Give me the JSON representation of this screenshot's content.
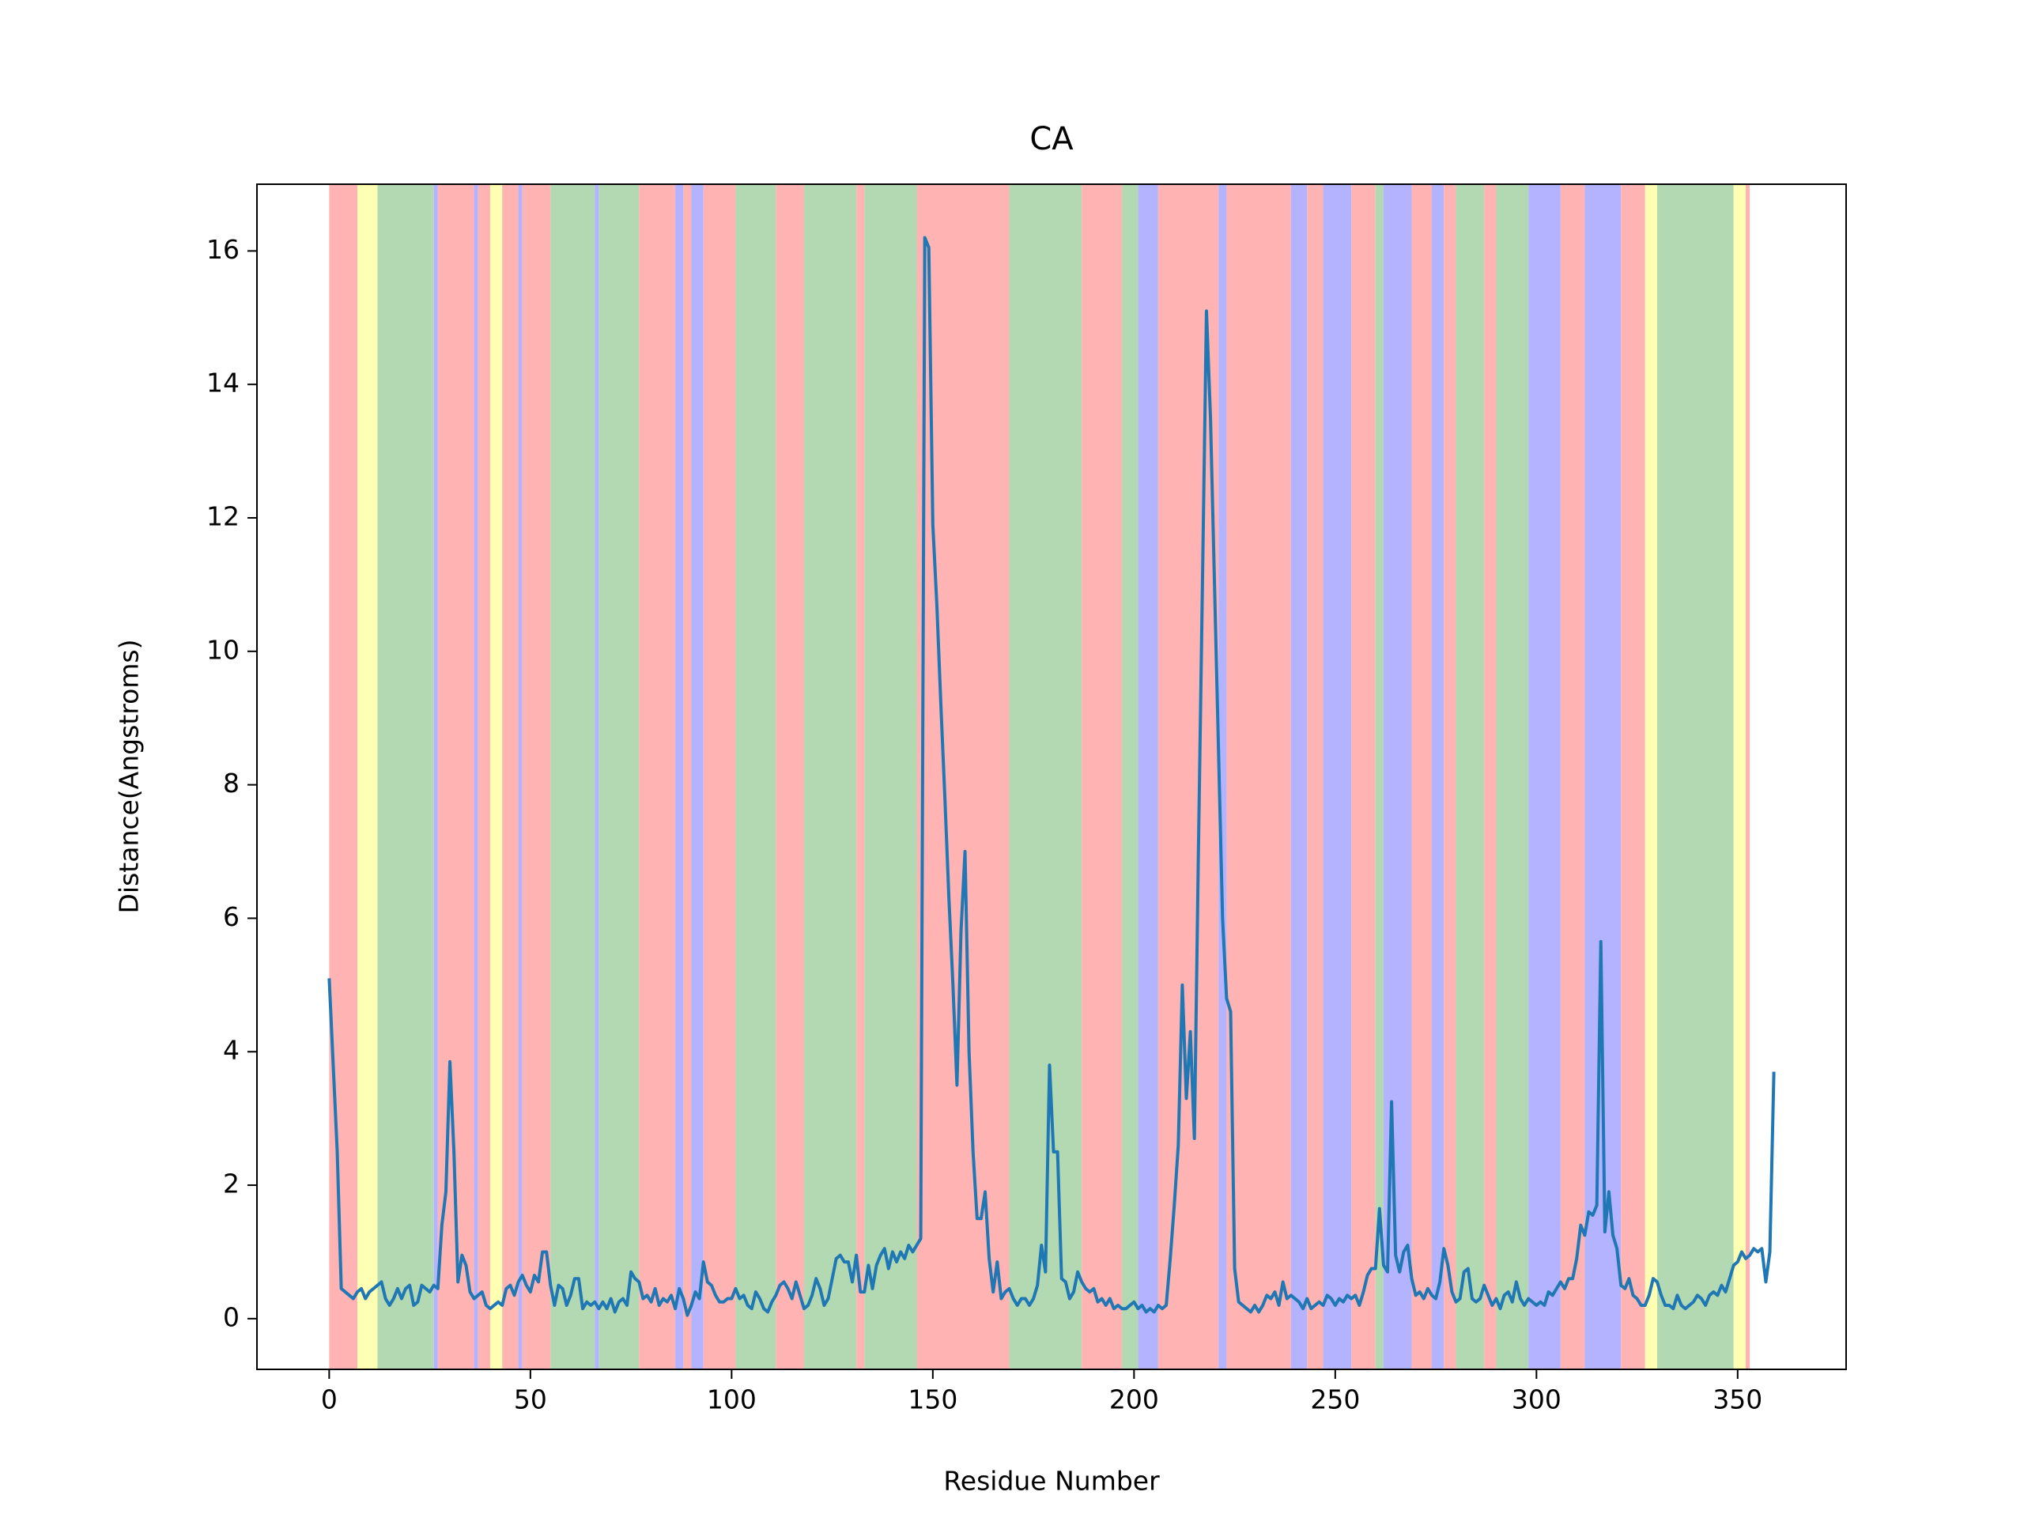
{
  "chart_data": {
    "type": "line",
    "title": "CA",
    "x_label": "Residue Number",
    "y_label": "Distance(Angstroms)",
    "color": "#1f77b4",
    "xlim": [
      -17.95,
      376.95
    ],
    "xticks": [
      0,
      50,
      100,
      150,
      200,
      250,
      300,
      350
    ],
    "ylim": [
      -0.76,
      17.0
    ],
    "yticks": [
      0,
      2,
      4,
      6,
      8,
      10,
      12,
      14,
      16
    ],
    "grid": false,
    "bands": [
      {
        "start": 0,
        "end": 7,
        "color": "#ffb3b3"
      },
      {
        "start": 7,
        "end": 12,
        "color": "#ffffb3"
      },
      {
        "start": 12,
        "end": 26,
        "color": "#b3d9b3"
      },
      {
        "start": 26,
        "end": 27,
        "color": "#b3b3ff"
      },
      {
        "start": 27,
        "end": 36,
        "color": "#ffb3b3"
      },
      {
        "start": 36,
        "end": 37,
        "color": "#b3b3ff"
      },
      {
        "start": 37,
        "end": 40,
        "color": "#ffb3b3"
      },
      {
        "start": 40,
        "end": 43,
        "color": "#ffffb3"
      },
      {
        "start": 43,
        "end": 47,
        "color": "#ffb3b3"
      },
      {
        "start": 47,
        "end": 48,
        "color": "#b3b3ff"
      },
      {
        "start": 48,
        "end": 55,
        "color": "#ffb3b3"
      },
      {
        "start": 55,
        "end": 66,
        "color": "#b3d9b3"
      },
      {
        "start": 66,
        "end": 67,
        "color": "#b3b3ff"
      },
      {
        "start": 67,
        "end": 77,
        "color": "#b3d9b3"
      },
      {
        "start": 77,
        "end": 86,
        "color": "#ffb3b3"
      },
      {
        "start": 86,
        "end": 88,
        "color": "#b3b3ff"
      },
      {
        "start": 88,
        "end": 90,
        "color": "#ffb3b3"
      },
      {
        "start": 90,
        "end": 93,
        "color": "#b3b3ff"
      },
      {
        "start": 93,
        "end": 101,
        "color": "#ffb3b3"
      },
      {
        "start": 101,
        "end": 111,
        "color": "#b3d9b3"
      },
      {
        "start": 111,
        "end": 118,
        "color": "#ffb3b3"
      },
      {
        "start": 118,
        "end": 131,
        "color": "#b3d9b3"
      },
      {
        "start": 131,
        "end": 133,
        "color": "#ffb3b3"
      },
      {
        "start": 133,
        "end": 146,
        "color": "#b3d9b3"
      },
      {
        "start": 146,
        "end": 169,
        "color": "#ffb3b3"
      },
      {
        "start": 169,
        "end": 187,
        "color": "#b3d9b3"
      },
      {
        "start": 187,
        "end": 197,
        "color": "#ffb3b3"
      },
      {
        "start": 197,
        "end": 201,
        "color": "#b3d9b3"
      },
      {
        "start": 201,
        "end": 206,
        "color": "#b3b3ff"
      },
      {
        "start": 206,
        "end": 221,
        "color": "#ffb3b3"
      },
      {
        "start": 221,
        "end": 223,
        "color": "#b3b3ff"
      },
      {
        "start": 223,
        "end": 239,
        "color": "#ffb3b3"
      },
      {
        "start": 239,
        "end": 243,
        "color": "#b3b3ff"
      },
      {
        "start": 243,
        "end": 247,
        "color": "#ffb3b3"
      },
      {
        "start": 247,
        "end": 254,
        "color": "#b3b3ff"
      },
      {
        "start": 254,
        "end": 260,
        "color": "#ffb3b3"
      },
      {
        "start": 260,
        "end": 262,
        "color": "#b3d9b3"
      },
      {
        "start": 262,
        "end": 269,
        "color": "#b3b3ff"
      },
      {
        "start": 269,
        "end": 274,
        "color": "#ffb3b3"
      },
      {
        "start": 274,
        "end": 277,
        "color": "#b3b3ff"
      },
      {
        "start": 277,
        "end": 280,
        "color": "#ffb3b3"
      },
      {
        "start": 280,
        "end": 287,
        "color": "#b3d9b3"
      },
      {
        "start": 287,
        "end": 290,
        "color": "#ffb3b3"
      },
      {
        "start": 290,
        "end": 298,
        "color": "#b3d9b3"
      },
      {
        "start": 298,
        "end": 306,
        "color": "#b3b3ff"
      },
      {
        "start": 306,
        "end": 312,
        "color": "#ffb3b3"
      },
      {
        "start": 312,
        "end": 321,
        "color": "#b3b3ff"
      },
      {
        "start": 321,
        "end": 327,
        "color": "#ffb3b3"
      },
      {
        "start": 327,
        "end": 330,
        "color": "#ffffb3"
      },
      {
        "start": 330,
        "end": 349,
        "color": "#b3d9b3"
      },
      {
        "start": 349,
        "end": 352,
        "color": "#ffffb3"
      },
      {
        "start": 352,
        "end": 353,
        "color": "#ffb3b3"
      }
    ],
    "x": [
      0,
      1,
      2,
      3,
      4,
      5,
      6,
      7,
      8,
      9,
      10,
      11,
      12,
      13,
      14,
      15,
      16,
      17,
      18,
      19,
      20,
      21,
      22,
      23,
      24,
      25,
      26,
      27,
      28,
      29,
      30,
      31,
      32,
      33,
      34,
      35,
      36,
      37,
      38,
      39,
      40,
      41,
      42,
      43,
      44,
      45,
      46,
      47,
      48,
      49,
      50,
      51,
      52,
      53,
      54,
      55,
      56,
      57,
      58,
      59,
      60,
      61,
      62,
      63,
      64,
      65,
      66,
      67,
      68,
      69,
      70,
      71,
      72,
      73,
      74,
      75,
      76,
      77,
      78,
      79,
      80,
      81,
      82,
      83,
      84,
      85,
      86,
      87,
      88,
      89,
      90,
      91,
      92,
      93,
      94,
      95,
      96,
      97,
      98,
      99,
      100,
      101,
      102,
      103,
      104,
      105,
      106,
      107,
      108,
      109,
      110,
      111,
      112,
      113,
      114,
      115,
      116,
      117,
      118,
      119,
      120,
      121,
      122,
      123,
      124,
      125,
      126,
      127,
      128,
      129,
      130,
      131,
      132,
      133,
      134,
      135,
      136,
      137,
      138,
      139,
      140,
      141,
      142,
      143,
      144,
      145,
      146,
      147,
      148,
      149,
      150,
      151,
      152,
      153,
      154,
      155,
      156,
      157,
      158,
      159,
      160,
      161,
      162,
      163,
      164,
      165,
      166,
      167,
      168,
      169,
      170,
      171,
      172,
      173,
      174,
      175,
      176,
      177,
      178,
      179,
      180,
      181,
      182,
      183,
      184,
      185,
      186,
      187,
      188,
      189,
      190,
      191,
      192,
      193,
      194,
      195,
      196,
      197,
      198,
      199,
      200,
      201,
      202,
      203,
      204,
      205,
      206,
      207,
      208,
      209,
      210,
      211,
      212,
      213,
      214,
      215,
      216,
      217,
      218,
      219,
      220,
      221,
      222,
      223,
      224,
      225,
      226,
      227,
      228,
      229,
      230,
      231,
      232,
      233,
      234,
      235,
      236,
      237,
      238,
      239,
      240,
      241,
      242,
      243,
      244,
      245,
      246,
      247,
      248,
      249,
      250,
      251,
      252,
      253,
      254,
      255,
      256,
      257,
      258,
      259,
      260,
      261,
      262,
      263,
      264,
      265,
      266,
      267,
      268,
      269,
      270,
      271,
      272,
      273,
      274,
      275,
      276,
      277,
      278,
      279,
      280,
      281,
      282,
      283,
      284,
      285,
      286,
      287,
      288,
      289,
      290,
      291,
      292,
      293,
      294,
      295,
      296,
      297,
      298,
      299,
      300,
      301,
      302,
      303,
      304,
      305,
      306,
      307,
      308,
      309,
      310,
      311,
      312,
      313,
      314,
      315,
      316,
      317,
      318,
      319,
      320,
      321,
      322,
      323,
      324,
      325,
      326,
      327,
      328,
      329,
      330,
      331,
      332,
      333,
      334,
      335,
      336,
      337,
      338,
      339,
      340,
      341,
      342,
      343,
      344,
      345,
      346,
      347,
      348,
      349,
      350,
      351,
      352,
      353,
      354,
      355,
      356,
      357,
      358,
      359
    ],
    "values": [
      5.1,
      3.8,
      2.5,
      0.45,
      0.4,
      0.35,
      0.3,
      0.4,
      0.45,
      0.3,
      0.4,
      0.45,
      0.5,
      0.55,
      0.3,
      0.2,
      0.3,
      0.45,
      0.3,
      0.45,
      0.5,
      0.2,
      0.25,
      0.5,
      0.45,
      0.4,
      0.5,
      0.45,
      1.4,
      1.9,
      3.85,
      2.5,
      0.55,
      0.95,
      0.8,
      0.4,
      0.3,
      0.35,
      0.4,
      0.2,
      0.15,
      0.2,
      0.25,
      0.2,
      0.45,
      0.5,
      0.35,
      0.55,
      0.65,
      0.5,
      0.4,
      0.65,
      0.55,
      1.0,
      1.0,
      0.5,
      0.2,
      0.5,
      0.45,
      0.2,
      0.35,
      0.6,
      0.6,
      0.15,
      0.25,
      0.2,
      0.25,
      0.15,
      0.25,
      0.15,
      0.3,
      0.1,
      0.25,
      0.3,
      0.2,
      0.7,
      0.6,
      0.55,
      0.3,
      0.35,
      0.25,
      0.45,
      0.2,
      0.3,
      0.25,
      0.35,
      0.15,
      0.45,
      0.3,
      0.05,
      0.2,
      0.4,
      0.3,
      0.85,
      0.55,
      0.5,
      0.35,
      0.25,
      0.25,
      0.3,
      0.3,
      0.45,
      0.3,
      0.35,
      0.2,
      0.15,
      0.4,
      0.3,
      0.15,
      0.1,
      0.25,
      0.35,
      0.5,
      0.55,
      0.45,
      0.3,
      0.55,
      0.35,
      0.15,
      0.2,
      0.35,
      0.6,
      0.45,
      0.2,
      0.3,
      0.6,
      0.9,
      0.95,
      0.85,
      0.85,
      0.55,
      0.95,
      0.4,
      0.4,
      0.8,
      0.45,
      0.8,
      0.95,
      1.05,
      0.75,
      1.0,
      0.85,
      1.0,
      0.9,
      1.1,
      1.0,
      1.1,
      1.2,
      16.2,
      16.05,
      11.9,
      10.7,
      9.2,
      7.8,
      6.3,
      5.0,
      3.5,
      5.8,
      7.0,
      4.0,
      2.5,
      1.5,
      1.5,
      1.9,
      0.9,
      0.4,
      0.85,
      0.3,
      0.4,
      0.45,
      0.3,
      0.2,
      0.3,
      0.3,
      0.2,
      0.3,
      0.5,
      1.1,
      0.7,
      3.8,
      2.5,
      2.5,
      0.6,
      0.55,
      0.3,
      0.4,
      0.7,
      0.55,
      0.45,
      0.4,
      0.45,
      0.25,
      0.3,
      0.2,
      0.3,
      0.15,
      0.2,
      0.15,
      0.15,
      0.2,
      0.25,
      0.15,
      0.2,
      0.1,
      0.15,
      0.1,
      0.2,
      0.15,
      0.2,
      0.9,
      1.7,
      2.6,
      5.0,
      3.3,
      4.3,
      2.7,
      7.0,
      11.0,
      15.1,
      13.5,
      11.0,
      8.5,
      6.0,
      4.8,
      4.6,
      0.75,
      0.25,
      0.2,
      0.15,
      0.1,
      0.2,
      0.1,
      0.2,
      0.35,
      0.3,
      0.4,
      0.2,
      0.55,
      0.3,
      0.35,
      0.3,
      0.25,
      0.15,
      0.3,
      0.15,
      0.2,
      0.25,
      0.2,
      0.35,
      0.3,
      0.2,
      0.3,
      0.25,
      0.35,
      0.3,
      0.35,
      0.2,
      0.4,
      0.65,
      0.75,
      0.75,
      1.65,
      0.8,
      0.7,
      3.25,
      0.95,
      0.7,
      1.0,
      1.1,
      0.6,
      0.35,
      0.4,
      0.3,
      0.45,
      0.35,
      0.3,
      0.55,
      1.05,
      0.8,
      0.4,
      0.25,
      0.3,
      0.7,
      0.75,
      0.3,
      0.25,
      0.3,
      0.5,
      0.35,
      0.2,
      0.3,
      0.15,
      0.35,
      0.4,
      0.25,
      0.55,
      0.3,
      0.2,
      0.3,
      0.25,
      0.2,
      0.25,
      0.2,
      0.4,
      0.35,
      0.45,
      0.55,
      0.45,
      0.6,
      0.6,
      0.9,
      1.4,
      1.25,
      1.6,
      1.55,
      1.7,
      5.65,
      1.3,
      1.9,
      1.25,
      1.05,
      0.5,
      0.45,
      0.6,
      0.35,
      0.3,
      0.2,
      0.2,
      0.35,
      0.6,
      0.55,
      0.35,
      0.2,
      0.2,
      0.15,
      0.35,
      0.2,
      0.15,
      0.2,
      0.25,
      0.35,
      0.3,
      0.2,
      0.35,
      0.4,
      0.35,
      0.5,
      0.4,
      0.6,
      0.8,
      0.85,
      1.0,
      0.9,
      0.95,
      1.05,
      1.0,
      1.05,
      0.55,
      1.0,
      3.7
    ]
  }
}
